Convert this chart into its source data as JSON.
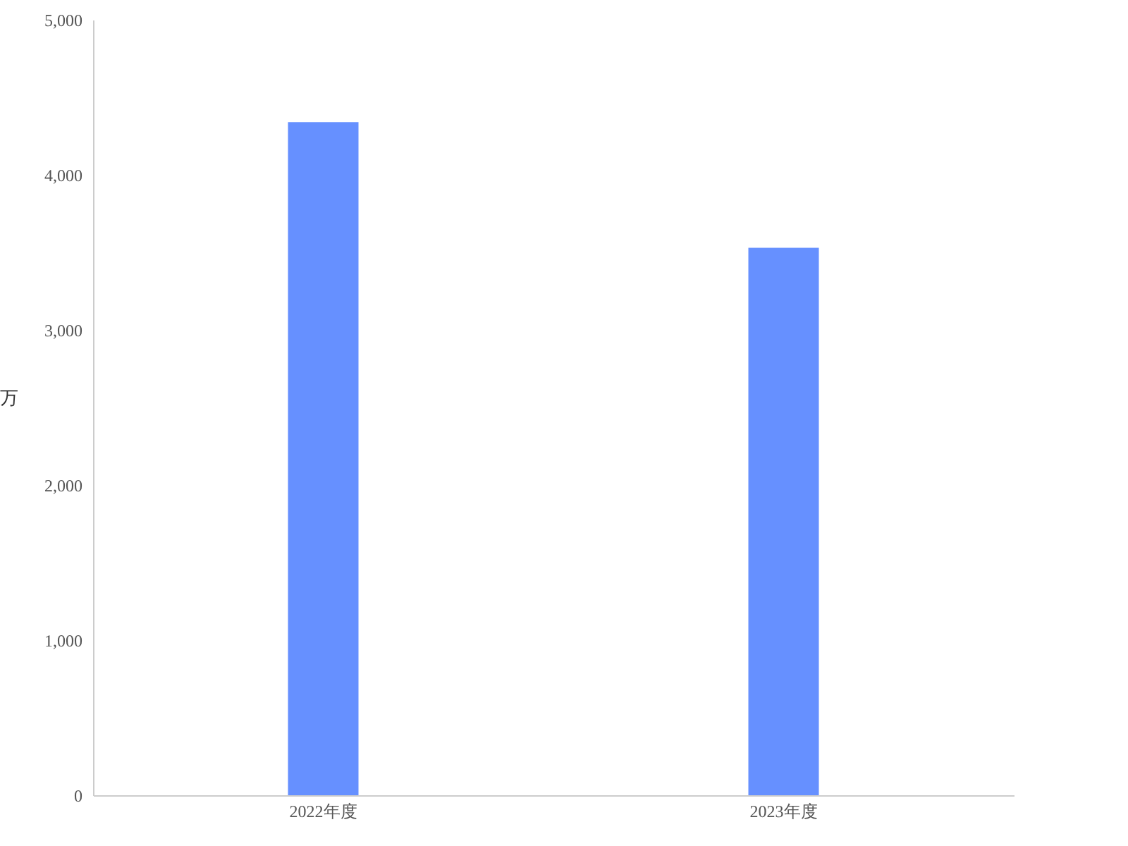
{
  "chart_data": {
    "type": "bar",
    "ylabel": "万",
    "categories": [
      "2022年度",
      "2023年度"
    ],
    "series": [
      {
        "color": "#6690ff",
        "values": [
          4340,
          3530
        ]
      }
    ],
    "ylim": [
      0,
      5000
    ],
    "yticks": [
      0,
      {
        "value": 1000,
        "label": "1,000"
      },
      {
        "value": 2000,
        "label": "2,000"
      },
      {
        "value": 3000,
        "label": "3,000"
      },
      {
        "value": 4000,
        "label": "4,000"
      },
      {
        "value": 5000,
        "label": "5,000"
      }
    ],
    "grid": false
  }
}
